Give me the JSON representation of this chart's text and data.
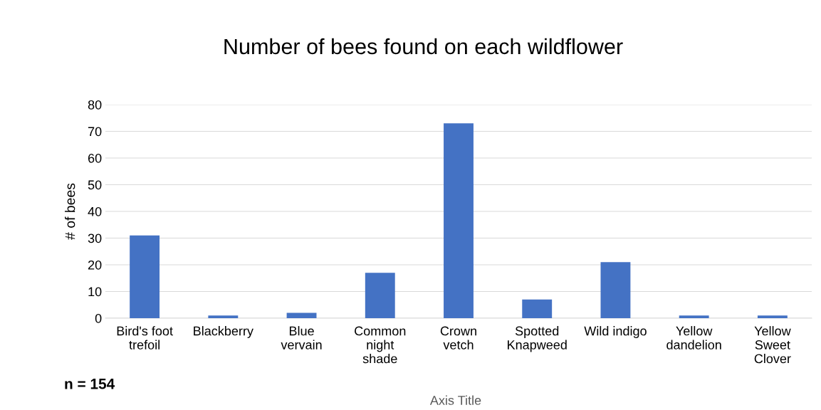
{
  "chart_data": {
    "type": "bar",
    "title": "Number of bees found on each wildflower",
    "categories": [
      "Bird's foot\ntrefoil",
      "Blackberry",
      "Blue\nvervain",
      "Common\nnight\nshade",
      "Crown\nvetch",
      "Spotted\nKnapweed",
      "Wild indigo",
      "Yellow\ndandelion",
      "Yellow\nSweet\nClover"
    ],
    "values": [
      31,
      1,
      2,
      17,
      73,
      7,
      21,
      1,
      1
    ],
    "color": "#4472c4",
    "ylim": [
      0,
      80
    ],
    "yticks": [
      0,
      10,
      20,
      30,
      40,
      50,
      60,
      70,
      80
    ],
    "ylabel": "# of bees",
    "xlabel": "Axis Title",
    "annotations": [
      "n = 154"
    ],
    "grid": "y",
    "legend": false
  }
}
